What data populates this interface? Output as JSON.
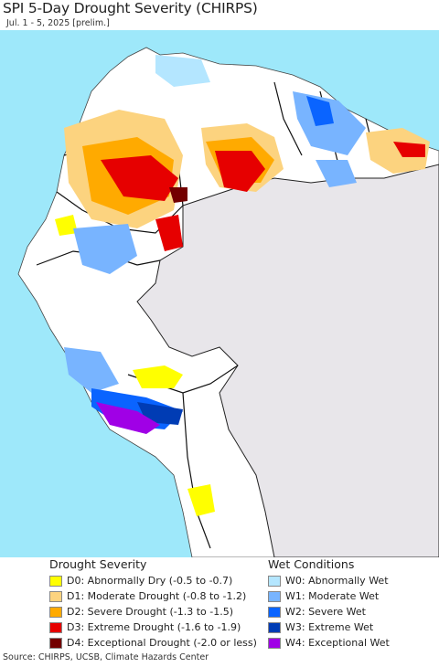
{
  "title": "SPI 5-Day Drought Severity (CHIRPS)",
  "subtitle": "Jul. 1 - 5, 2025 [prelim.]",
  "legend": {
    "drought": {
      "heading": "Drought Severity",
      "items": [
        {
          "label": "D0: Abnormally Dry (-0.5 to -0.7)",
          "color": "#ffff00"
        },
        {
          "label": "D1: Moderate Drought (-0.8 to -1.2)",
          "color": "#fcd37f"
        },
        {
          "label": "D2: Severe Drought (-1.3 to -1.5)",
          "color": "#ffaa00"
        },
        {
          "label": "D3: Extreme Drought (-1.6 to -1.9)",
          "color": "#e60000"
        },
        {
          "label": "D4: Exceptional Drought (-2.0 or less)",
          "color": "#730000"
        }
      ]
    },
    "wet": {
      "heading": "Wet Conditions",
      "items": [
        {
          "label": "W0: Abnormally Wet",
          "color": "#b4e6ff"
        },
        {
          "label": "W1: Moderate Wet",
          "color": "#78b4ff"
        },
        {
          "label": "W2: Severe Wet",
          "color": "#0a64ff"
        },
        {
          "label": "W3: Extreme Wet",
          "color": "#003cb4"
        },
        {
          "label": "W4: Exceptional Wet",
          "color": "#a000e6"
        }
      ]
    }
  },
  "map": {
    "ocean_color": "#9ee8fa",
    "land_color": "#ffffff",
    "nodata_color": "#e8e6ea",
    "border_color": "#111111"
  },
  "source": "Source: CHIRPS, UCSB, Climate Hazards Center"
}
